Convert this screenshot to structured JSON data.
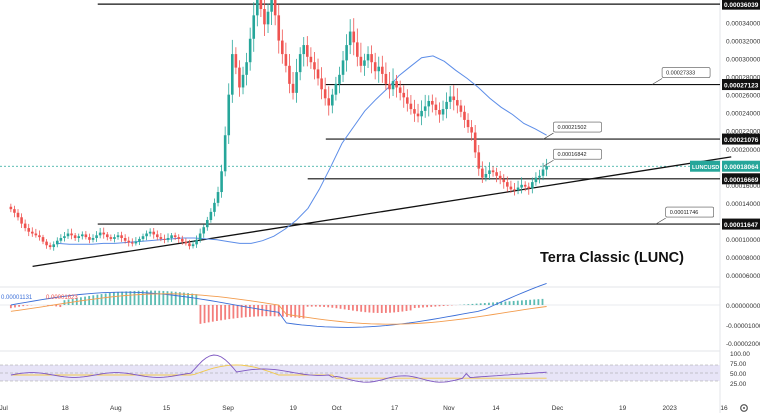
{
  "chart_data": {
    "type": "candlestick",
    "symbol": "LUNCUSD",
    "annotation_title": "Terra Classic (LUNC)",
    "price_axis": {
      "range": [
        5e-05,
        0.000365
      ],
      "ticks": [
        "0.00036039",
        "0.00034000",
        "0.00032000",
        "0.00030000",
        "0.00028000",
        "0.00027123",
        "0.00026000",
        "0.00024000",
        "0.00022000",
        "0.00021076",
        "0.00020000",
        "0.00018064",
        "0.00016669",
        "0.00016000",
        "0.00014000",
        "0.00011647",
        "0.00010000",
        "0.00008000",
        "0.00006000"
      ]
    },
    "time_axis": {
      "range_days": [
        -1,
        159
      ],
      "labels": [
        {
          "text": "Jul",
          "day": 0
        },
        {
          "text": "18",
          "day": 17
        },
        {
          "text": "Aug",
          "day": 31
        },
        {
          "text": "15",
          "day": 45
        },
        {
          "text": "Sep",
          "day": 62
        },
        {
          "text": "19",
          "day": 80
        },
        {
          "text": "Oct",
          "day": 92
        },
        {
          "text": "17",
          "day": 108
        },
        {
          "text": "Nov",
          "day": 123
        },
        {
          "text": "14",
          "day": 136
        },
        {
          "text": "Dec",
          "day": 153
        },
        {
          "text": "19",
          "day": 171
        },
        {
          "text": "2023",
          "day": 184
        },
        {
          "text": "16",
          "day": 199
        }
      ]
    },
    "horizontal_levels": [
      {
        "price": 0.00036039,
        "label": "0.00036039",
        "day_start": 26
      },
      {
        "price": 0.00027123,
        "label": "0.00027123",
        "day_start": 89
      },
      {
        "price": 0.00021076,
        "label": "0.00021076",
        "day_start": 89
      },
      {
        "price": 0.00016669,
        "label": "0.00016669",
        "day_start": 84
      },
      {
        "price": 0.00011647,
        "label": "0.00011647",
        "day_start": 26
      }
    ],
    "callouts": [
      {
        "label": "0.00027333",
        "price": 0.00027123,
        "day": 183
      },
      {
        "label": "0.00021502",
        "price": 0.00021076,
        "day": 153
      },
      {
        "label": "0.00016842",
        "price": 0.00018064,
        "day": 153
      },
      {
        "label": "0.00011746",
        "price": 0.00011647,
        "day": 184
      }
    ],
    "trendline": {
      "start": {
        "day": 8,
        "price": 6.95e-05
      },
      "end": {
        "day": 201,
        "price": 0.000191
      }
    },
    "last_price": {
      "label": "LUNCUSD",
      "value": "0.00018064",
      "price": 0.00018064
    },
    "close_series": [
      0.000133,
      0.000129,
      0.000124,
      0.000117,
      0.000112,
      0.000108,
      0.000106,
      0.000104,
      0.000102,
      9.7e-05,
      9.3e-05,
      9.1e-05,
      9.4e-05,
      9.8e-05,
      0.000101,
      0.000103,
      0.000106,
      0.000104,
      0.000101,
      0.000103,
      0.000105,
      0.000102,
      9.9e-05,
      0.000101,
      0.000104,
      0.000107,
      0.000105,
      0.000102,
      0.0001,
      0.000102,
      0.000104,
      0.000101,
      9.8e-05,
      9.6e-05,
      9.5e-05,
      9.7e-05,
      0.0001,
      0.000103,
      0.000106,
      0.000108,
      0.000105,
      0.000102,
      0.0001,
      9.9e-05,
      0.000101,
      0.000104,
      0.000102,
      0.0001,
      9.7e-05,
      9.5e-05,
      9.2e-05,
      9.4e-05,
      9.9e-05,
      0.000106,
      0.000113,
      0.000121,
      0.00013,
      0.00014,
      0.000152,
      0.000175,
      0.000215,
      0.00026,
      0.000305,
      0.00029,
      0.000268,
      0.000282,
      0.000296,
      0.000322,
      0.000348,
      0.000365,
      0.000355,
      0.000338,
      0.000352,
      0.000365,
      0.000348,
      0.00032,
      0.000305,
      0.000292,
      0.000272,
      0.000262,
      0.000285,
      0.000305,
      0.000315,
      0.000302,
      0.000296,
      0.000288,
      0.000278,
      0.000266,
      0.000256,
      0.000248,
      0.00026,
      0.000272,
      0.000282,
      0.000298,
      0.000315,
      0.00033,
      0.000318,
      0.000302,
      0.000292,
      0.000298,
      0.000305,
      0.000296,
      0.000286,
      0.000291,
      0.000283,
      0.000272,
      0.000266,
      0.000275,
      0.000268,
      0.000262,
      0.000257,
      0.00025,
      0.000244,
      0.000239,
      0.000236,
      0.000242,
      0.000247,
      0.000253,
      0.000249,
      0.000243,
      0.000238,
      0.000244,
      0.000252,
      0.000258,
      0.000254,
      0.000248,
      0.000241,
      0.000232,
      0.000224,
      0.000218,
      0.000196,
      0.000178,
      0.000168,
      0.000172,
      0.000176,
      0.000174,
      0.00017,
      0.000166,
      0.000163,
      0.000158,
      0.000155,
      0.000154,
      0.000157,
      0.00016,
      0.000158,
      0.000156,
      0.000163,
      0.000168,
      0.00017,
      0.000177,
      0.00018064
    ],
    "ma_close_series": [
      9.5e-05,
      9.4e-05,
      9.4e-05,
      9.4e-05,
      9.5e-05,
      9.5e-05,
      9.6e-05,
      9.7e-05,
      9.8e-05,
      9.9e-05,
      0.0001,
      0.000101,
      0.000101,
      0.0001,
      9.9e-05,
      9.7e-05,
      9.5e-05,
      9.5e-05,
      9.8e-05,
      0.000103,
      0.000111,
      0.000121,
      0.000134,
      0.000155,
      0.00018,
      0.000206,
      0.000224,
      0.000242,
      0.000255,
      0.000267,
      0.000281,
      0.000291,
      0.000301,
      0.000303,
      0.000297,
      0.000287,
      0.000278,
      0.000268,
      0.000256,
      0.000246,
      0.000238,
      0.000228,
      0.000222,
      0.000215
    ],
    "macd": {
      "scale_labels": [
        "0.00000000",
        "-0.00001000",
        "-0.00002000"
      ],
      "legend_values": [
        "0.00001131",
        "0.00001623"
      ],
      "histogram_positive_color": "#26a69a",
      "histogram_negative_color": "#ef5350"
    },
    "rsi": {
      "scale_labels": [
        "100.00",
        "75.00",
        "50.00",
        "25.00"
      ],
      "overbought": 70,
      "oversold": 30,
      "band_color": "#e7e4f7",
      "line_color": "#7e57c2",
      "ma_color": "#f2c94c"
    },
    "colors": {
      "up": "#26a69a",
      "down": "#ef5350",
      "ma_line": "#5c8de8",
      "level_line": "#111111",
      "macd_line": "#3b6fd8",
      "signal_line": "#f39c4d"
    }
  }
}
